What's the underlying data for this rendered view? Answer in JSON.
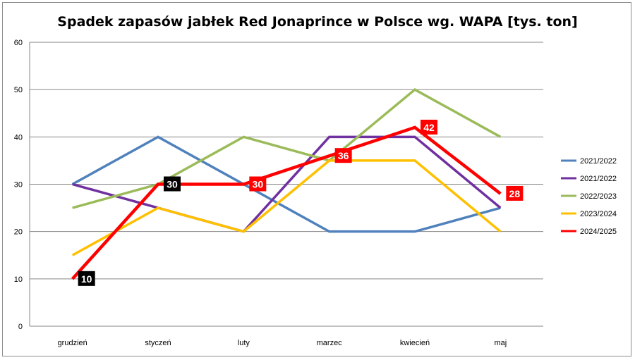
{
  "chart_data": {
    "type": "line",
    "title": "Spadek zapasów jabłek Red Jonaprince w Polsce wg. WAPA [tys. ton]",
    "xlabel": "",
    "ylabel": "",
    "categories": [
      "grudzień",
      "styczeń",
      "luty",
      "marzec",
      "kwiecień",
      "maj"
    ],
    "ylim": [
      0,
      60
    ],
    "yticks": [
      0,
      10,
      20,
      30,
      40,
      50,
      60
    ],
    "grid": true,
    "legend_position": "right",
    "series": [
      {
        "name": "2021/2022",
        "color": "#4f81bd",
        "values": [
          30,
          40,
          30,
          20,
          20,
          25
        ]
      },
      {
        "name": "2021/2022",
        "color": "#7030a0",
        "values": [
          30,
          25,
          20,
          40,
          40,
          25
        ]
      },
      {
        "name": "2022/2023",
        "color": "#9bbb59",
        "values": [
          25,
          30,
          40,
          35,
          50,
          40
        ]
      },
      {
        "name": "2023/2024",
        "color": "#ffc000",
        "values": [
          15,
          25,
          20,
          35,
          35,
          20
        ]
      },
      {
        "name": "2024/2025",
        "color": "#ff0000",
        "values": [
          10,
          30,
          30,
          36,
          42,
          28
        ],
        "bold": true
      }
    ],
    "data_labels": [
      {
        "series": 4,
        "index": 0,
        "text": "10",
        "bg": "#000000"
      },
      {
        "series": 4,
        "index": 1,
        "text": "30",
        "bg": "#000000"
      },
      {
        "series": 4,
        "index": 2,
        "text": "30",
        "bg": "#ff0000"
      },
      {
        "series": 4,
        "index": 3,
        "text": "36",
        "bg": "#ff0000"
      },
      {
        "series": 4,
        "index": 4,
        "text": "42",
        "bg": "#ff0000"
      },
      {
        "series": 4,
        "index": 5,
        "text": "28",
        "bg": "#ff0000"
      }
    ]
  }
}
